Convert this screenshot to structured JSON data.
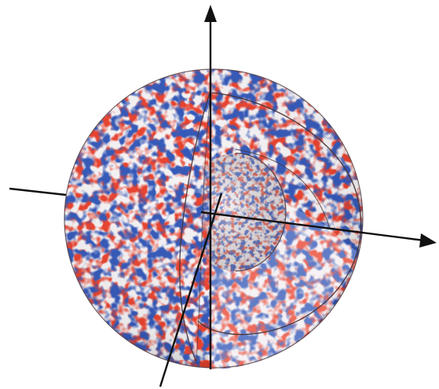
{
  "figure": {
    "kind": "sphere-cutaway-with-axes",
    "colors": {
      "background": "#ffffff",
      "warm_blob": "#e8432f",
      "cool_blob": "#3559b8",
      "sphere_base": "#f4f1f3",
      "interior_base": "#f2edf1",
      "rim": "#4a3438",
      "axis": "#111111"
    },
    "axes": [
      "vertical-axis",
      "horizontal-axis",
      "depth-axis"
    ],
    "shells": [
      "outer-shell",
      "inner-shell"
    ],
    "annotations": []
  }
}
